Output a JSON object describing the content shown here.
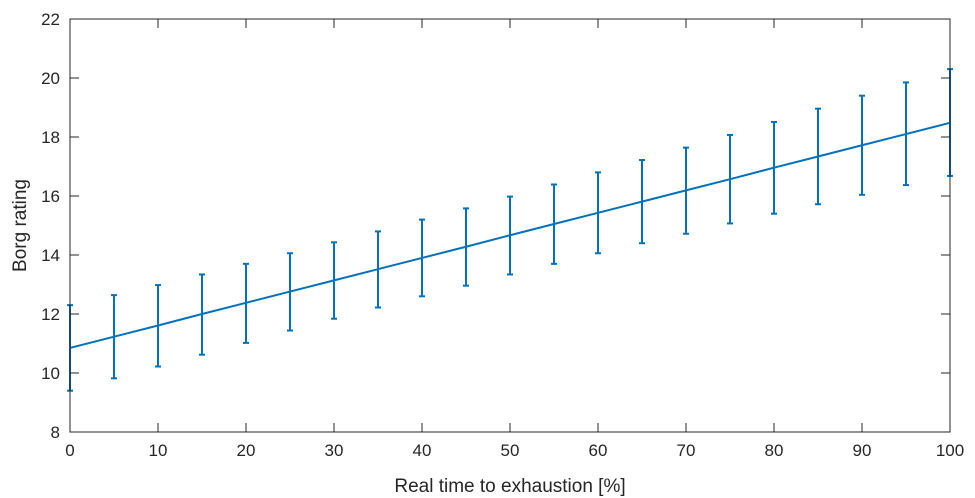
{
  "chart_data": {
    "type": "line",
    "title": "",
    "xlabel": "Real time to exhaustion [%]",
    "ylabel": "Borg rating",
    "xlim": [
      0,
      100
    ],
    "ylim": [
      8,
      22
    ],
    "xticks": [
      0,
      10,
      20,
      30,
      40,
      50,
      60,
      70,
      80,
      90,
      100
    ],
    "yticks": [
      8,
      10,
      12,
      14,
      16,
      18,
      20,
      22
    ],
    "grid": false,
    "color": "#0072BD",
    "series": [
      {
        "x": [
          0,
          5,
          10,
          15,
          20,
          25,
          30,
          35,
          40,
          45,
          50,
          55,
          60,
          65,
          70,
          75,
          80,
          85,
          90,
          95,
          100
        ],
        "y": [
          10.85,
          11.23,
          11.61,
          12.0,
          12.38,
          12.76,
          13.14,
          13.52,
          13.9,
          14.28,
          14.67,
          15.05,
          15.43,
          15.81,
          16.19,
          16.57,
          16.96,
          17.34,
          17.72,
          18.1,
          18.48
        ],
        "error_lower": [
          9.4,
          9.82,
          10.22,
          10.62,
          11.02,
          11.44,
          11.84,
          12.22,
          12.6,
          12.96,
          13.34,
          13.7,
          14.06,
          14.4,
          14.72,
          15.07,
          15.4,
          15.72,
          16.04,
          16.37,
          16.68
        ],
        "error_upper": [
          12.3,
          12.64,
          12.98,
          13.34,
          13.7,
          14.06,
          14.43,
          14.8,
          15.2,
          15.58,
          15.98,
          16.39,
          16.8,
          17.22,
          17.64,
          18.07,
          18.51,
          18.96,
          19.4,
          19.85,
          20.3
        ]
      }
    ]
  }
}
